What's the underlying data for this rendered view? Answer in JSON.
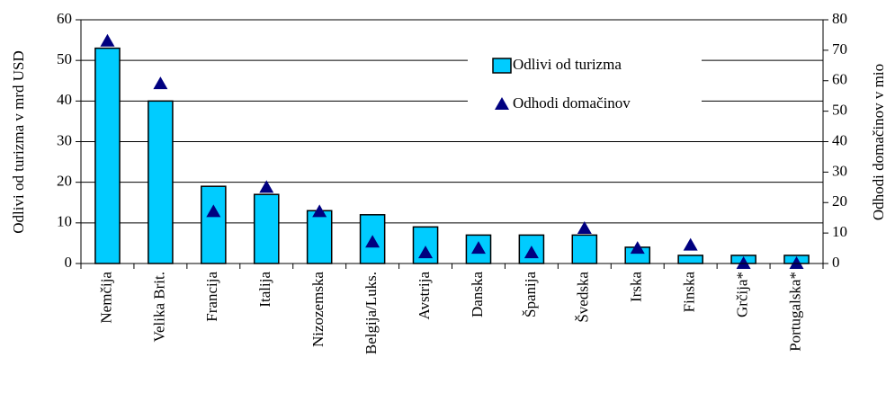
{
  "chart_data": {
    "type": "bar",
    "categories": [
      "Nemčija",
      "Velika Brit.",
      "Francija",
      "Italija",
      "Nizozemska",
      "Belgija/Luks.",
      "Avstrija",
      "Danska",
      "Španija",
      "Švedska",
      "Irska",
      "Finska",
      "Grčija*",
      "Portugalska*"
    ],
    "series": [
      {
        "name": "Odlivi od turizma",
        "color": "#00ccff",
        "values": [
          53,
          40,
          19,
          17,
          13,
          12,
          9,
          7,
          7,
          7,
          4,
          2,
          2,
          2
        ]
      },
      {
        "name": "Odhodi domačinov",
        "color": "#000080",
        "axis": "y2",
        "marker": "triangle",
        "values": [
          73,
          59,
          17,
          25,
          17,
          7,
          3.5,
          5,
          3.5,
          11.5,
          5,
          6,
          0,
          0
        ]
      }
    ],
    "ylabel": "Odlivi od turizma v mrd USD",
    "y2label": "Odhodi domačinov v mio",
    "ylim": [
      0,
      60
    ],
    "yticks": [
      0,
      10,
      20,
      30,
      40,
      50,
      60
    ],
    "y2lim": [
      0,
      80
    ],
    "y2ticks": [
      0,
      10,
      20,
      30,
      40,
      50,
      60,
      70,
      80
    ],
    "grid": true,
    "legend": "upper right"
  }
}
